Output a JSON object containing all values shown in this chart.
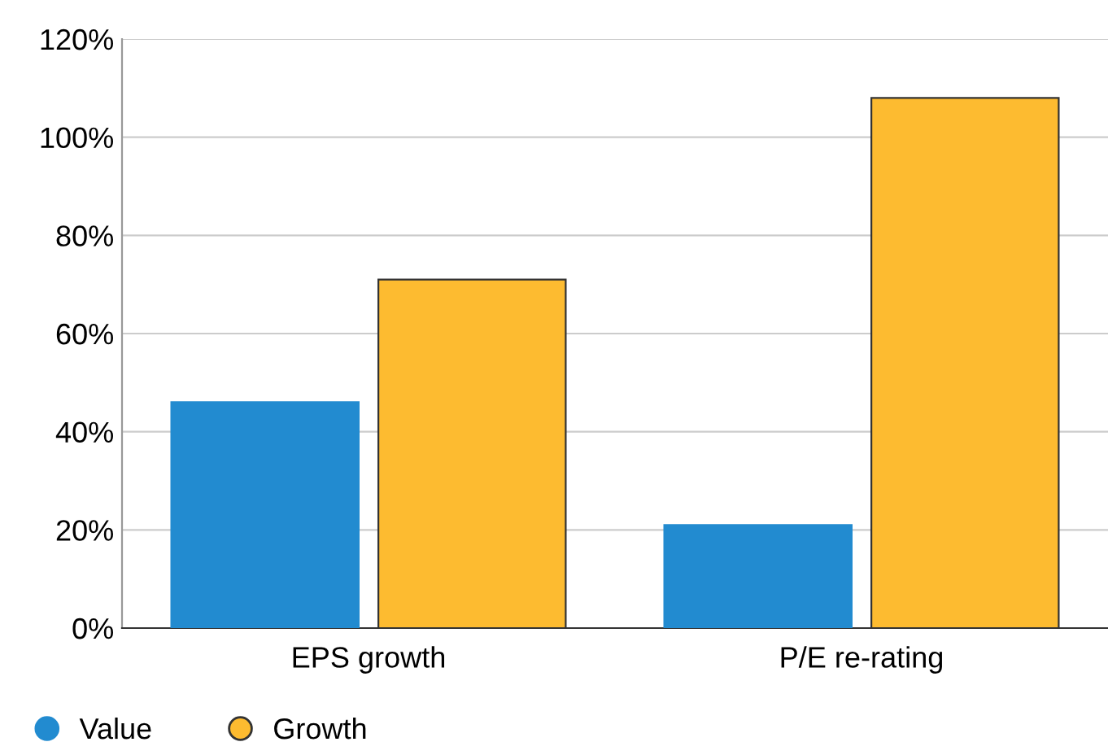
{
  "chart_data": {
    "type": "bar",
    "categories": [
      "EPS growth",
      "P/E re-rating"
    ],
    "series": [
      {
        "name": "Value",
        "color": "#228bd0",
        "values": [
          46,
          21
        ]
      },
      {
        "name": "Growth",
        "color": "#fdbb30",
        "values": [
          71,
          108
        ]
      }
    ],
    "ylim": [
      0,
      120
    ],
    "yticks": [
      {
        "value": 0,
        "label": "0%"
      },
      {
        "value": 20,
        "label": "20%"
      },
      {
        "value": 40,
        "label": "40%"
      },
      {
        "value": 60,
        "label": "60%"
      },
      {
        "value": 80,
        "label": "80%"
      },
      {
        "value": 100,
        "label": "100%"
      },
      {
        "value": 120,
        "label": "120%"
      }
    ],
    "grid": "y",
    "legend": "bottom left"
  }
}
